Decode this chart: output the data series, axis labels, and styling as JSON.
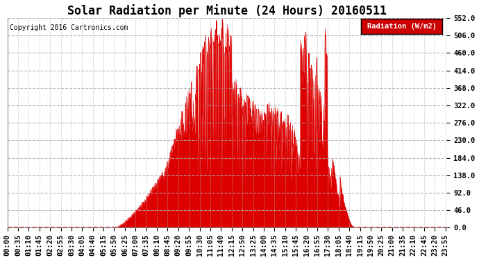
{
  "title": "Solar Radiation per Minute (24 Hours) 20160511",
  "copyright_text": "Copyright 2016 Cartronics.com",
  "legend_label": "Radiation (W/m2)",
  "ylim": [
    0.0,
    552.0
  ],
  "yticks": [
    0.0,
    46.0,
    92.0,
    138.0,
    184.0,
    230.0,
    276.0,
    322.0,
    368.0,
    414.0,
    460.0,
    506.0,
    552.0
  ],
  "fill_color": "#dd0000",
  "bg_color": "#ffffff",
  "grid_color": "#b0b0b0",
  "legend_bg": "#cc0000",
  "legend_text_color": "#ffffff",
  "title_fontsize": 12,
  "tick_fontsize": 7.5,
  "copyright_fontsize": 7
}
